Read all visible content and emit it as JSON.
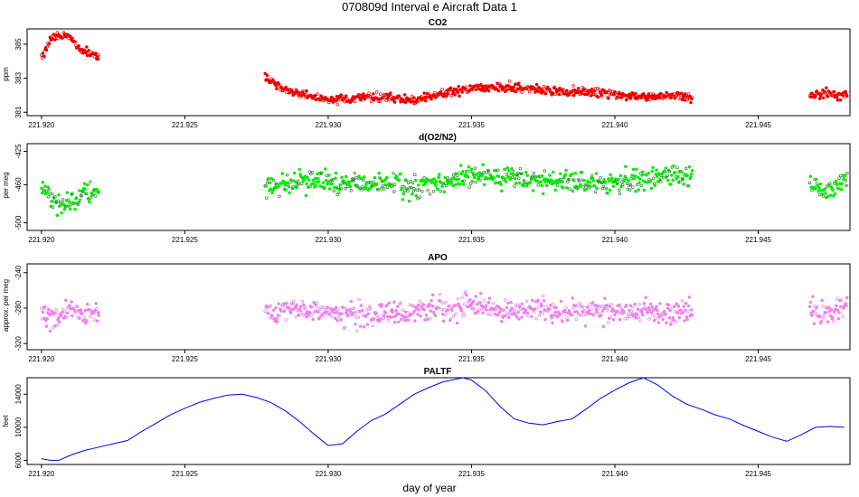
{
  "figure": {
    "title": "070809d   Interval e Aircraft Data 1",
    "xlabel": "day of year"
  },
  "chart_data": [
    {
      "type": "scatter",
      "title": "CO2",
      "ylabel": "ppm",
      "color": "#ee0000",
      "xlim": [
        221.9195,
        221.9482
      ],
      "ylim": [
        380.8,
        385.9
      ],
      "x_ticks": [
        221.92,
        221.925,
        221.93,
        221.935,
        221.94,
        221.945
      ],
      "x_tick_labels": [
        "221.920",
        "221.925",
        "221.930",
        "221.935",
        "221.940",
        "221.945"
      ],
      "y_ticks": [
        381,
        383,
        385
      ],
      "y_tick_labels": [
        "381",
        "383",
        "385"
      ],
      "segments": [
        {
          "x": [
            221.92,
            221.9203,
            221.9206,
            221.921,
            221.9214,
            221.9217,
            221.922
          ],
          "y": [
            384.2,
            385.2,
            385.6,
            385.4,
            384.6,
            384.5,
            384.3
          ]
        },
        {
          "x": [
            221.9278,
            221.9285,
            221.9292,
            221.93,
            221.931,
            221.932,
            221.933,
            221.934,
            221.935,
            221.936,
            221.937,
            221.938,
            221.939,
            221.94,
            221.941,
            221.942,
            221.9427
          ],
          "y": [
            383.0,
            382.3,
            382.0,
            381.7,
            381.8,
            381.9,
            381.7,
            382.1,
            382.4,
            382.5,
            382.4,
            382.2,
            382.2,
            382.0,
            381.9,
            382.0,
            381.8
          ]
        },
        {
          "x": [
            221.9468,
            221.9474,
            221.9481
          ],
          "y": [
            382.0,
            382.1,
            381.9
          ]
        }
      ],
      "noise": 0.25
    },
    {
      "type": "scatter",
      "title": "d(O2/N2)",
      "ylabel": "per meg",
      "color": "#00ee00",
      "xlim": [
        221.9195,
        221.9482
      ],
      "ylim": [
        -508,
        -417
      ],
      "x_ticks": [
        221.92,
        221.925,
        221.93,
        221.935,
        221.94,
        221.945
      ],
      "x_tick_labels": [
        "221.920",
        "221.925",
        "221.930",
        "221.935",
        "221.940",
        "221.945"
      ],
      "y_ticks": [
        -500,
        -460,
        -425
      ],
      "y_tick_labels": [
        "-500",
        "-460",
        "-425"
      ],
      "segments": [
        {
          "x": [
            221.92,
            221.9205,
            221.921,
            221.9215,
            221.922
          ],
          "y": [
            -463,
            -480,
            -478,
            -470,
            -468
          ]
        },
        {
          "x": [
            221.9278,
            221.929,
            221.93,
            221.931,
            221.932,
            221.933,
            221.934,
            221.935,
            221.936,
            221.937,
            221.938,
            221.939,
            221.94,
            221.941,
            221.942,
            221.9427
          ],
          "y": [
            -462,
            -455,
            -458,
            -462,
            -460,
            -462,
            -458,
            -450,
            -452,
            -454,
            -456,
            -458,
            -458,
            -455,
            -450,
            -452
          ]
        },
        {
          "x": [
            221.9468,
            221.9474,
            221.9481
          ],
          "y": [
            -462,
            -468,
            -452
          ]
        }
      ],
      "noise": 11
    },
    {
      "type": "scatter",
      "title": "APO",
      "ylabel": "approx. per meg",
      "color": "#ee82ee",
      "xlim": [
        221.9195,
        221.9482
      ],
      "ylim": [
        -327,
        -230
      ],
      "x_ticks": [
        221.92,
        221.925,
        221.93,
        221.935,
        221.94,
        221.945
      ],
      "x_tick_labels": [
        "221.920",
        "221.925",
        "221.930",
        "221.935",
        "221.940",
        "221.945"
      ],
      "y_ticks": [
        -320,
        -280,
        -240
      ],
      "y_tick_labels": [
        "-320",
        "-280",
        "-240"
      ],
      "segments": [
        {
          "x": [
            221.92,
            221.9205,
            221.921,
            221.9215,
            221.922
          ],
          "y": [
            -285,
            -290,
            -283,
            -288,
            -285
          ]
        },
        {
          "x": [
            221.9278,
            221.929,
            221.93,
            221.931,
            221.932,
            221.933,
            221.934,
            221.935,
            221.936,
            221.937,
            221.938,
            221.939,
            221.94,
            221.941,
            221.942,
            221.9427
          ],
          "y": [
            -285,
            -280,
            -285,
            -287,
            -288,
            -285,
            -280,
            -277,
            -283,
            -280,
            -285,
            -283,
            -284,
            -283,
            -285,
            -283
          ]
        },
        {
          "x": [
            221.9468,
            221.9474,
            221.9481
          ],
          "y": [
            -280,
            -290,
            -275
          ]
        }
      ],
      "noise": 13
    },
    {
      "type": "line",
      "title": "PALTF",
      "ylabel": "feet",
      "color": "#0000ee",
      "xlim": [
        221.9195,
        221.9482
      ],
      "ylim": [
        5500,
        16000
      ],
      "x_ticks": [
        221.92,
        221.925,
        221.93,
        221.935,
        221.94,
        221.945
      ],
      "x_tick_labels": [
        "221.920",
        "221.925",
        "221.930",
        "221.935",
        "221.940",
        "221.945"
      ],
      "y_ticks": [
        6000,
        10000,
        14000
      ],
      "y_tick_labels": [
        "6000",
        "10000",
        "14000"
      ],
      "x": [
        221.92,
        221.9203,
        221.9206,
        221.921,
        221.9215,
        221.922,
        221.9225,
        221.923,
        221.9235,
        221.924,
        221.9245,
        221.925,
        221.9255,
        221.926,
        221.9265,
        221.927,
        221.9275,
        221.928,
        221.9285,
        221.929,
        221.9295,
        221.93,
        221.9305,
        221.931,
        221.9315,
        221.932,
        221.9325,
        221.933,
        221.9335,
        221.934,
        221.9347,
        221.935,
        221.9355,
        221.936,
        221.9365,
        221.937,
        221.9375,
        221.938,
        221.9385,
        221.939,
        221.9395,
        221.94,
        221.9405,
        221.941,
        221.9415,
        221.942,
        221.9425,
        221.943,
        221.9435,
        221.944,
        221.9445,
        221.945,
        221.9455,
        221.946,
        221.9465,
        221.947,
        221.9475,
        221.948
      ],
      "y": [
        6200,
        6000,
        6000,
        6600,
        7200,
        7600,
        8000,
        8400,
        9500,
        10500,
        11500,
        12300,
        13000,
        13500,
        13900,
        14000,
        13600,
        13000,
        12000,
        10700,
        9200,
        7800,
        8000,
        9500,
        10800,
        11600,
        12800,
        14000,
        14800,
        15500,
        16000,
        15700,
        14400,
        12500,
        11000,
        10500,
        10300,
        10700,
        11000,
        12200,
        13500,
        14500,
        15400,
        16000,
        15100,
        13800,
        12800,
        12200,
        11500,
        11000,
        10200,
        9500,
        8800,
        8300,
        9100,
        10000,
        10100,
        10000
      ]
    }
  ]
}
